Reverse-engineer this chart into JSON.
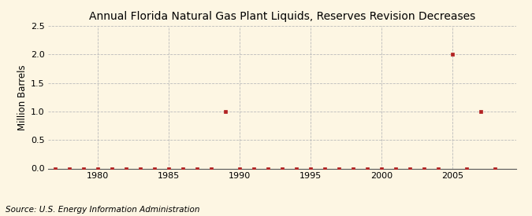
{
  "title": "Annual Florida Natural Gas Plant Liquids, Reserves Revision Decreases",
  "ylabel": "Million Barrels",
  "source": "Source: U.S. Energy Information Administration",
  "years": [
    1977,
    1978,
    1979,
    1980,
    1981,
    1982,
    1983,
    1984,
    1985,
    1986,
    1987,
    1988,
    1989,
    1990,
    1991,
    1992,
    1993,
    1994,
    1995,
    1996,
    1997,
    1998,
    1999,
    2000,
    2001,
    2002,
    2003,
    2004,
    2005,
    2006,
    2007,
    2008
  ],
  "values": [
    0,
    0,
    0,
    0,
    0,
    0,
    0,
    0,
    0,
    0,
    0,
    0,
    1.0,
    0,
    0,
    0,
    0,
    0,
    0,
    0,
    0,
    0,
    0,
    0,
    0,
    0,
    0,
    0,
    2.0,
    0,
    1.0,
    0
  ],
  "marker_color": "#b22222",
  "marker_size": 3.5,
  "grid_color": "#bbbbbb",
  "bg_color": "#fdf6e3",
  "plot_bg_color": "#fdf6e3",
  "xlim": [
    1976.5,
    2009.5
  ],
  "ylim": [
    0,
    2.5
  ],
  "yticks": [
    0.0,
    0.5,
    1.0,
    1.5,
    2.0,
    2.5
  ],
  "xticks": [
    1980,
    1985,
    1990,
    1995,
    2000,
    2005
  ],
  "title_fontsize": 10,
  "label_fontsize": 8.5,
  "tick_fontsize": 8,
  "source_fontsize": 7.5
}
